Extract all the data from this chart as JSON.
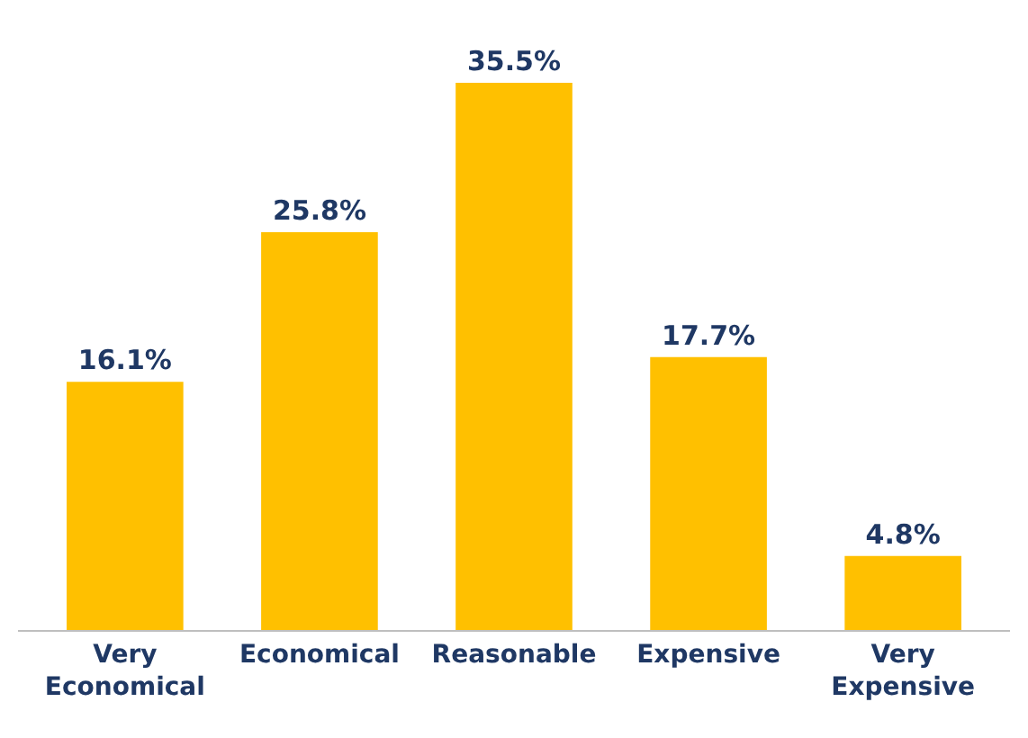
{
  "chart_data": {
    "type": "bar",
    "categories": [
      "Very Economical",
      "Economical",
      "Reasonable",
      "Expensive",
      "Very Expensive"
    ],
    "values": [
      16.1,
      25.8,
      35.5,
      17.7,
      4.8
    ],
    "value_labels": [
      "16.1%",
      "25.8%",
      "35.5%",
      "17.7%",
      "4.8%"
    ],
    "color": "#ffc000",
    "grid": false,
    "legend": false
  }
}
